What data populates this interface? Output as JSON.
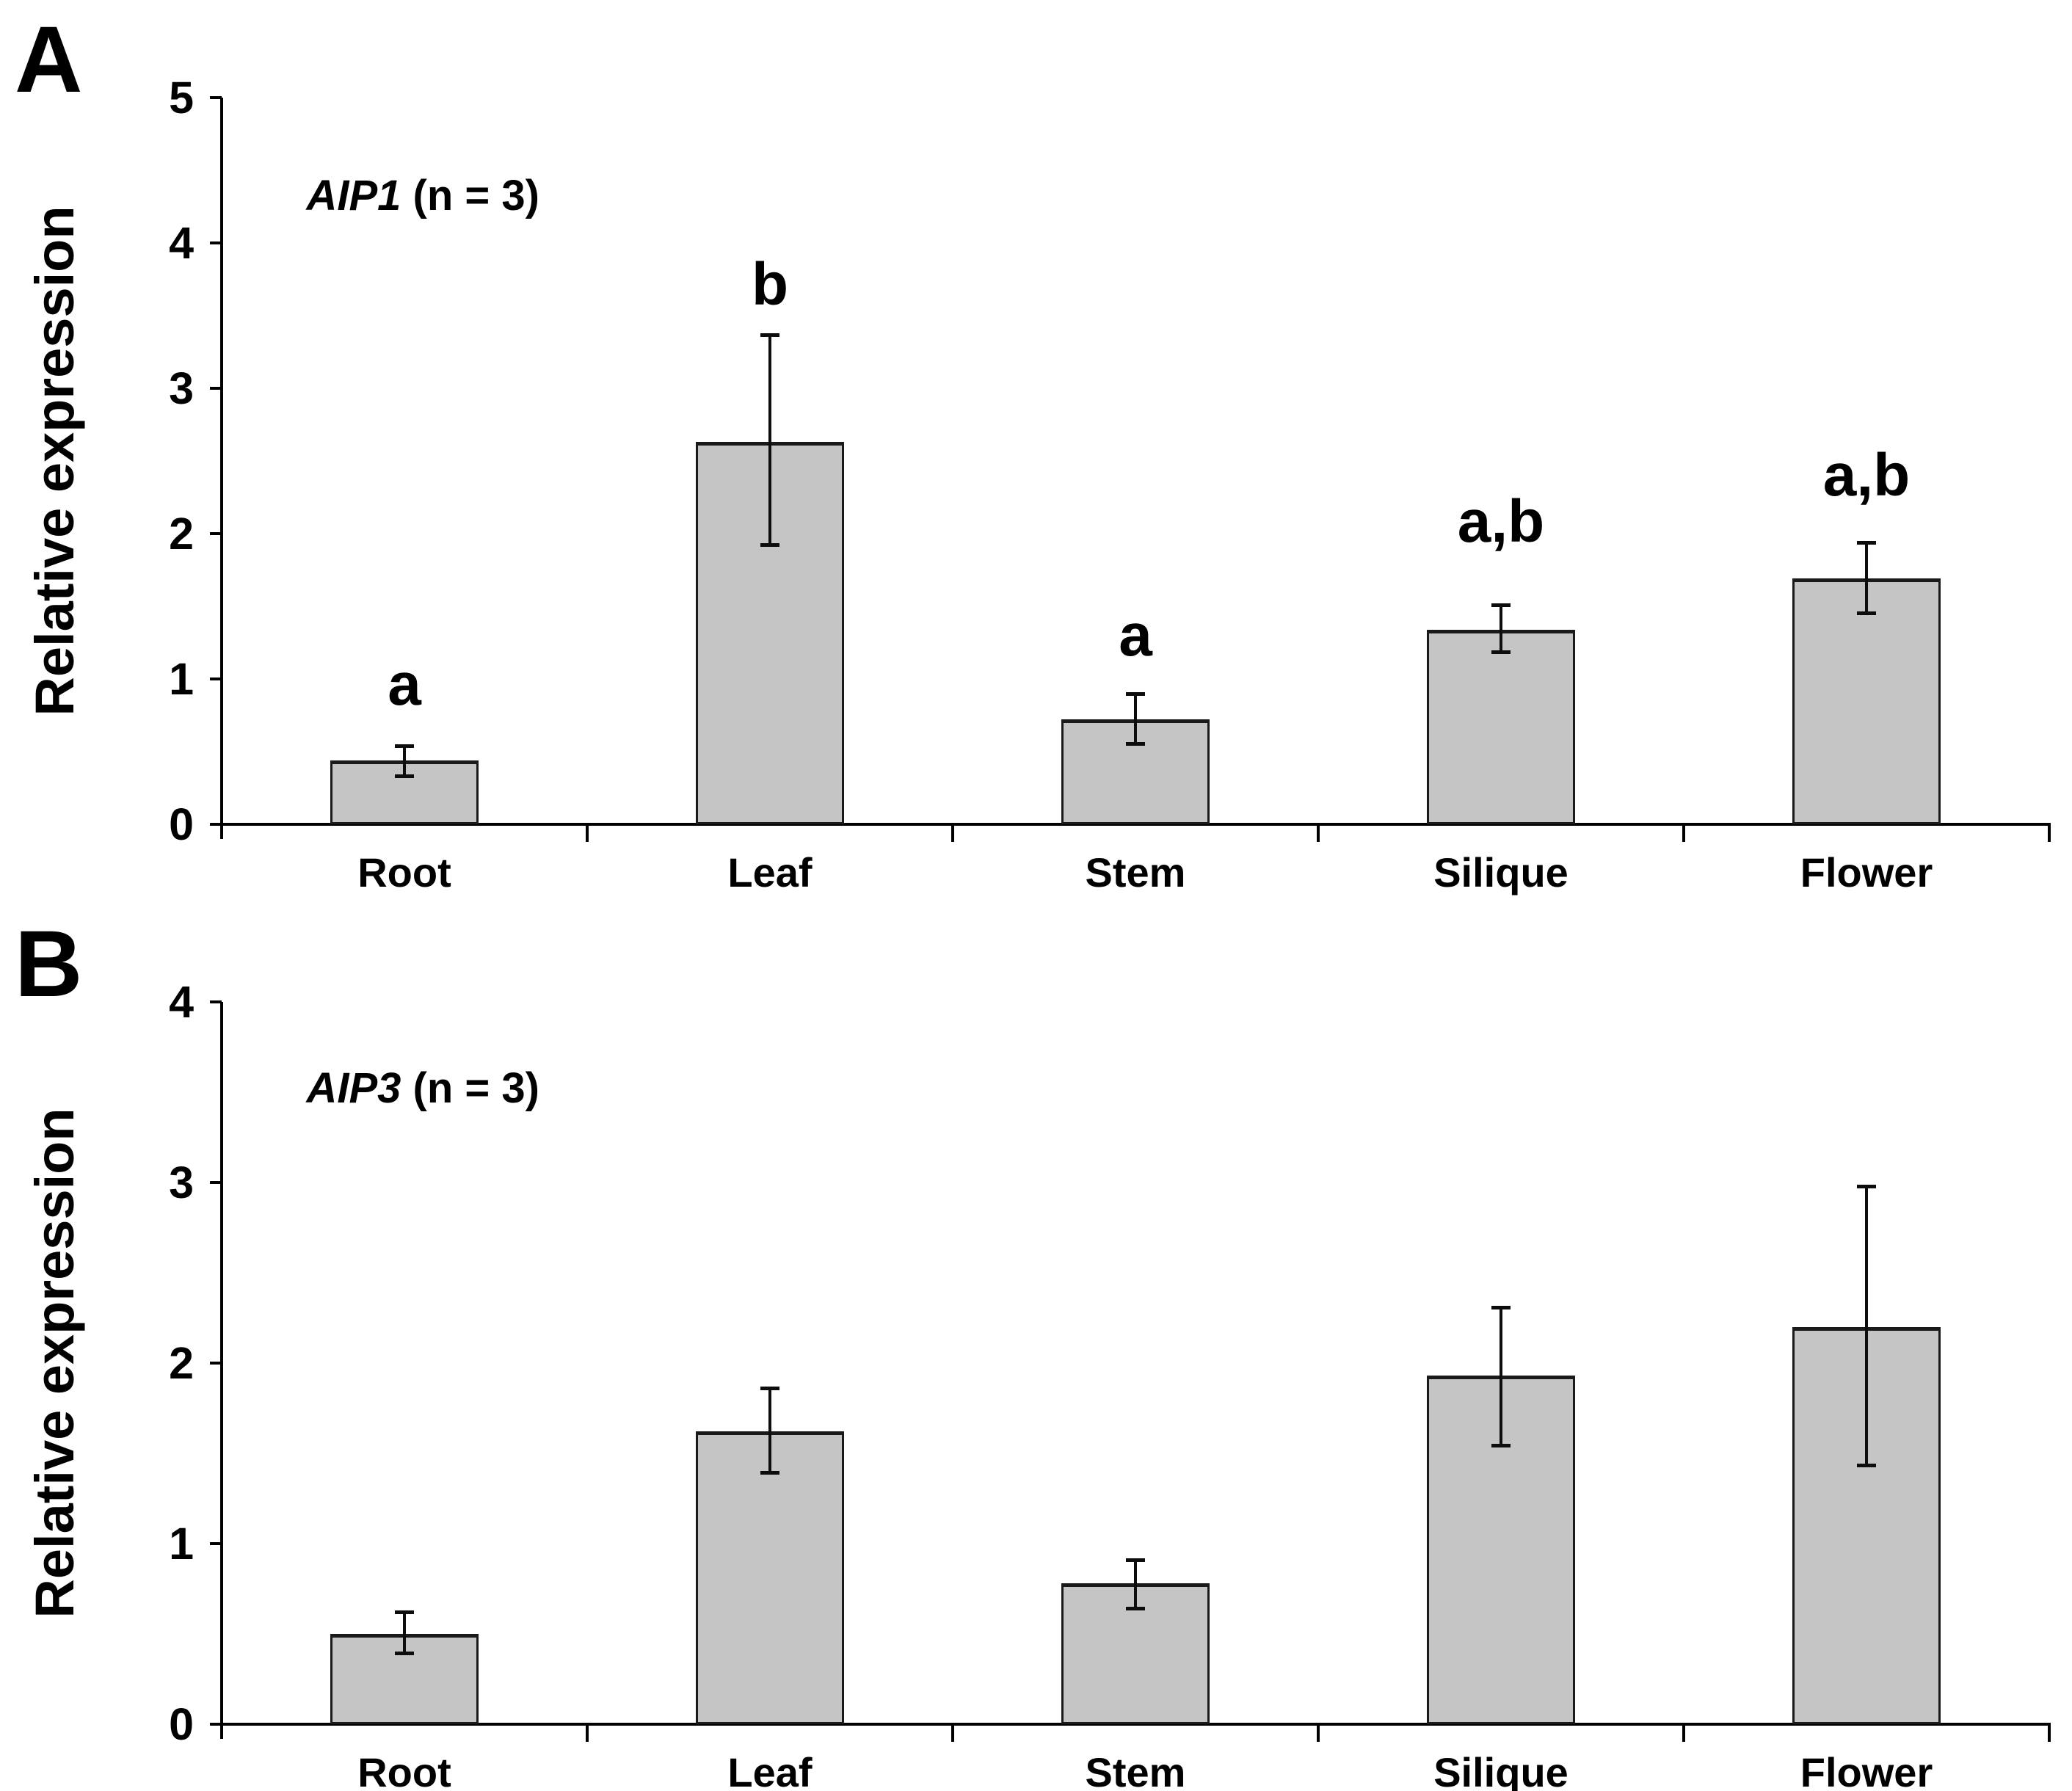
{
  "figure": {
    "background": "#ffffff",
    "panel_count": 2
  },
  "chart_data": [
    {
      "id": "A",
      "type": "bar",
      "panel_label": "A",
      "title_gene": "AIP1",
      "title_rest": " (n = 3)",
      "title_full": "AIP1 (n = 3)",
      "ylabel": "Relative expression",
      "xlabel": "",
      "ylim": [
        0,
        5
      ],
      "yticks": [
        0,
        1,
        2,
        3,
        4,
        5
      ],
      "grid": false,
      "legend": null,
      "categories": [
        "Root",
        "Leaf",
        "Stem",
        "Silique",
        "Flower"
      ],
      "values": [
        0.44,
        2.63,
        0.72,
        1.34,
        1.69
      ],
      "error_up": [
        0.1,
        0.74,
        0.18,
        0.17,
        0.25
      ],
      "error_down": [
        0.11,
        0.71,
        0.17,
        0.16,
        0.24
      ],
      "sig_letters": [
        "a",
        "b",
        "a",
        "a,b",
        "a,b"
      ],
      "sig_letter_y": [
        0.96,
        3.71,
        1.3,
        2.08,
        2.4
      ],
      "bar_fill": "#c5c5c5",
      "bar_border": "#1a1a1a",
      "axis_color": "#000000"
    },
    {
      "id": "B",
      "type": "bar",
      "panel_label": "B",
      "title_gene": "AIP3",
      "title_rest": " (n = 3)",
      "title_full": "AIP3 (n = 3)",
      "ylabel": "Relative expression",
      "xlabel": "",
      "ylim": [
        0,
        4
      ],
      "yticks": [
        0,
        1,
        2,
        3,
        4
      ],
      "grid": false,
      "legend": null,
      "categories": [
        "Root",
        "Leaf",
        "Stem",
        "Silique",
        "Flower"
      ],
      "values": [
        0.5,
        1.62,
        0.78,
        1.93,
        2.2
      ],
      "error_up": [
        0.12,
        0.24,
        0.13,
        0.38,
        0.78
      ],
      "error_down": [
        0.11,
        0.23,
        0.14,
        0.39,
        0.77
      ],
      "sig_letters": null,
      "sig_letter_y": null,
      "bar_fill": "#c5c5c5",
      "bar_border": "#1a1a1a",
      "axis_color": "#000000"
    }
  ]
}
